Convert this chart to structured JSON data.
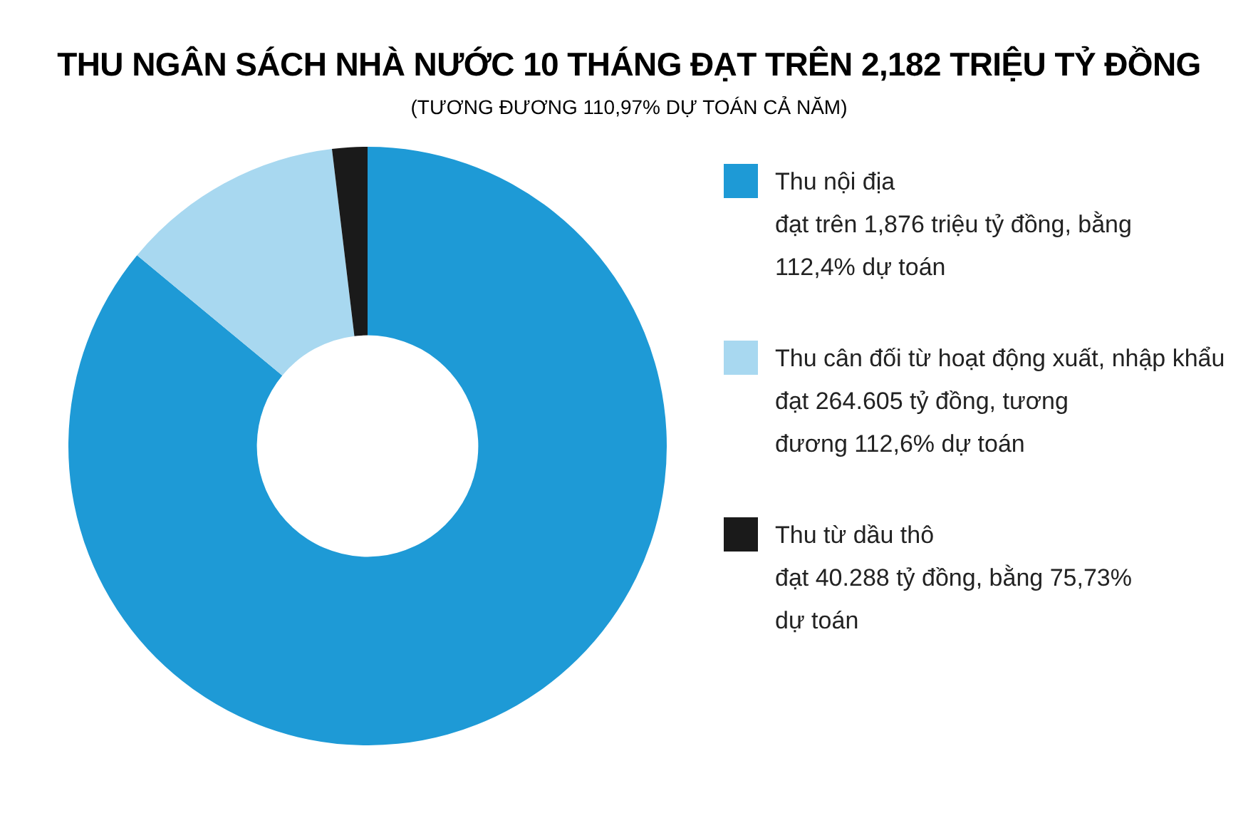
{
  "chart_data": {
    "type": "donut",
    "title": "THU NGÂN SÁCH NHÀ NƯỚC 10 THÁNG ĐẠT TRÊN 2,182 TRIỆU TỶ ĐỒNG",
    "subtitle": "(TƯƠNG ĐƯƠNG 110,97% DỰ TOÁN CẢ NĂM)",
    "categories": [
      "Thu nội địa",
      "Thu cân đối từ hoạt động xuất, nhập khẩu",
      "Thu từ dầu thô"
    ],
    "values": [
      86.0,
      12.1,
      1.9
    ],
    "colors": [
      "#1e9ad6",
      "#a8d8f0",
      "#1a1a1a"
    ],
    "annotations": [
      "đạt trên 1,876 triệu tỷ đồng, bằng 112,4% dự toán",
      "đạt 264.605 tỷ đồng, tương đương 112,6% dự toán",
      "đạt 40.288 tỷ đồng, bằng 75,73% dự toán"
    ],
    "legend": "right"
  }
}
